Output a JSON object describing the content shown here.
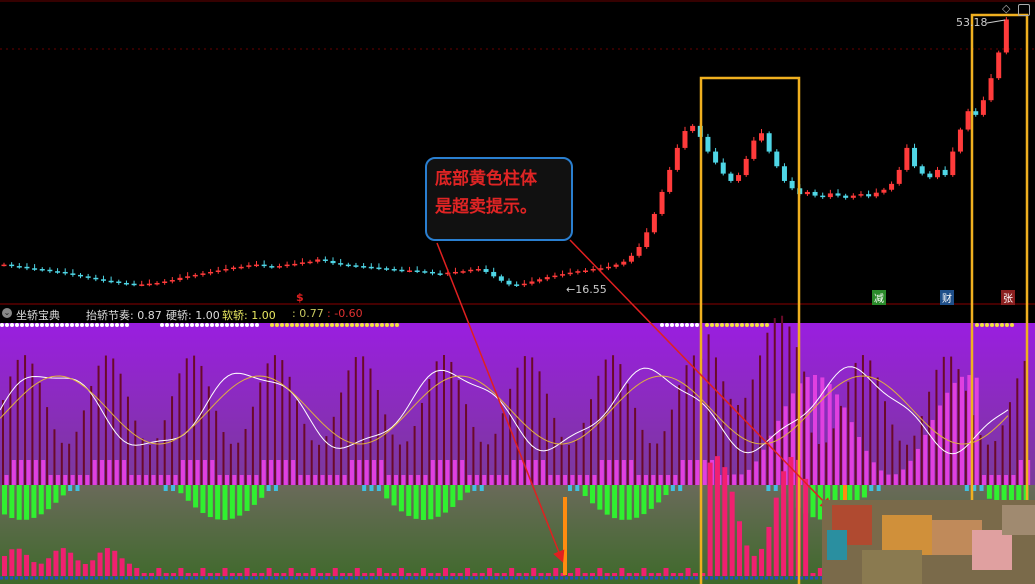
{
  "indicator": {
    "name": "坐轿宝典",
    "items": [
      {
        "label": "抬轿节奏:",
        "value": "0.87",
        "color": "#dddddd"
      },
      {
        "label": "硬轿:",
        "value": "1.00",
        "color": "#dddddd"
      },
      {
        "label": "软轿:",
        "value": "1.00",
        "color": "#e8e860"
      },
      {
        "label": ":",
        "value": "0.77",
        "color": "#c8c860"
      },
      {
        "label": ":",
        "value": "-0.60",
        "color": "#e03030"
      }
    ]
  },
  "price": {
    "high_label": "53.18",
    "low_label": "16.55",
    "closes": [
      19.6,
      19.4,
      19.3,
      19.1,
      19.0,
      18.9,
      18.7,
      18.6,
      18.4,
      18.2,
      18.0,
      17.8,
      17.6,
      17.4,
      17.3,
      17.1,
      17.0,
      16.9,
      16.9,
      17.0,
      17.1,
      17.3,
      17.5,
      17.8,
      18.0,
      18.2,
      18.4,
      18.6,
      18.8,
      19.0,
      19.2,
      19.3,
      19.5,
      19.6,
      19.4,
      19.3,
      19.4,
      19.6,
      19.7,
      19.9,
      20.0,
      20.3,
      20.1,
      19.8,
      19.6,
      19.5,
      19.4,
      19.3,
      19.2,
      19.1,
      19.0,
      18.9,
      18.8,
      18.8,
      18.7,
      18.6,
      18.4,
      18.3,
      18.5,
      18.6,
      18.7,
      18.9,
      19.0,
      18.6,
      18.0,
      17.4,
      16.9,
      16.8,
      17.0,
      17.3,
      17.6,
      17.9,
      18.1,
      18.3,
      18.5,
      18.7,
      18.8,
      19.0,
      19.1,
      19.3,
      19.6,
      20.0,
      20.8,
      22.0,
      24.0,
      26.5,
      29.5,
      32.5,
      35.5,
      37.8,
      38.5,
      37.0,
      35.0,
      33.5,
      32.0,
      31.0,
      31.8,
      34.0,
      36.5,
      37.5,
      35.0,
      33.0,
      31.0,
      30.0,
      29.2,
      29.5,
      29.0,
      28.8,
      29.3,
      29.0,
      28.7,
      29.0,
      29.2,
      28.9,
      29.4,
      29.8,
      30.6,
      32.5,
      35.5,
      33.0,
      32.0,
      31.5,
      32.5,
      31.8,
      35.0,
      38.0,
      40.5,
      40.0,
      42.0,
      45.0,
      48.5,
      53.0
    ]
  },
  "markers": [
    {
      "text": "减",
      "bg": "#2a8a2a"
    },
    {
      "text": "财",
      "bg": "#1f4f8a"
    },
    {
      "text": "张",
      "bg": "#8a1f1f"
    }
  ],
  "s_marker": "$",
  "callout": {
    "line1": "底部黄色柱体",
    "line2": "是超卖提示。"
  },
  "colors": {
    "up": "#ff3b3b",
    "down": "#4fd6e6",
    "highlight_box": "#f0b020",
    "purple": "#9b20d8"
  }
}
